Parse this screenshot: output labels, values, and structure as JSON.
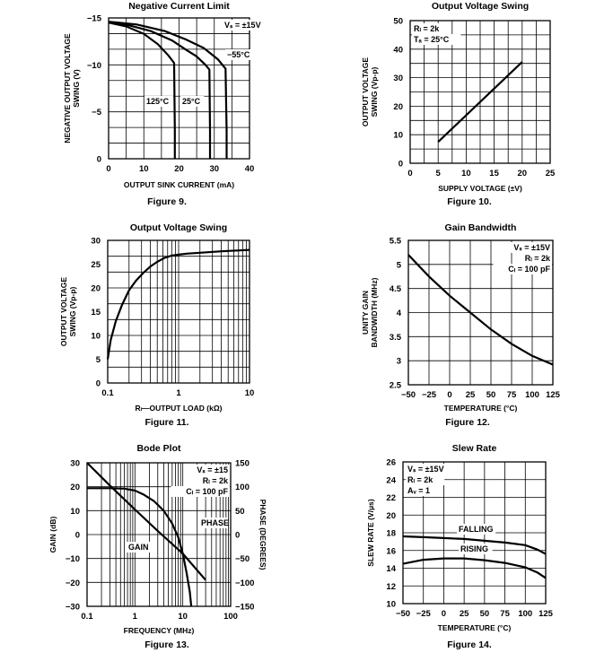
{
  "chart_data": [
    {
      "type": "line",
      "id": "fig9",
      "title": "Negative Current Limit",
      "caption": "Figure 9.",
      "xlabel": "OUTPUT SINK CURRENT (mA)",
      "ylabel_lines": [
        "NEGATIVE OUTPUT VOLTAGE",
        "SWING (V)"
      ],
      "xlim": [
        0,
        40
      ],
      "ylim": [
        0,
        -15
      ],
      "xticks": [
        "0",
        "10",
        "20",
        "30",
        "40"
      ],
      "yticks": [
        "0",
        "−5",
        "−10",
        "−15"
      ],
      "annotations": [
        "Vₛ = ±15V",
        "−55°C",
        "125°C",
        "25°C"
      ],
      "series": [
        {
          "name": "125°C",
          "x": [
            0,
            5,
            10,
            14,
            17,
            18.6,
            18.8,
            18.8
          ],
          "y": [
            -14.5,
            -14.1,
            -13.3,
            -12.2,
            -11.0,
            -10.2,
            -3,
            0
          ]
        },
        {
          "name": "25°C",
          "x": [
            0,
            6,
            12,
            18,
            22,
            25,
            27.5,
            28.6,
            28.8,
            28.8
          ],
          "y": [
            -14.6,
            -14.2,
            -13.6,
            -12.6,
            -11.6,
            -10.9,
            -10.0,
            -9.5,
            -3,
            0
          ]
        },
        {
          "name": "−55°C",
          "x": [
            0,
            8,
            16,
            22,
            27,
            31,
            33.2,
            33.5,
            33.5
          ],
          "y": [
            -14.6,
            -14.3,
            -13.6,
            -12.7,
            -11.8,
            -10.6,
            -9.6,
            -3,
            0
          ]
        }
      ]
    },
    {
      "type": "line",
      "id": "fig10",
      "title": "Output Voltage Swing",
      "caption": "Figure 10.",
      "xlabel": "SUPPLY VOLTAGE (±V)",
      "ylabel_lines": [
        "OUTPUT VOLTAGE",
        "SWING (Vp-p)"
      ],
      "xlim": [
        0,
        25
      ],
      "ylim": [
        0,
        50
      ],
      "xticks": [
        "0",
        "5",
        "10",
        "15",
        "20",
        "25"
      ],
      "yticks": [
        "0",
        "10",
        "20",
        "30",
        "40",
        "50"
      ],
      "annotations": [
        "Rₗ = 2k",
        "Tₐ = 25°C"
      ],
      "series": [
        {
          "name": "swing",
          "x": [
            5,
            20
          ],
          "y": [
            7.5,
            35.5
          ]
        }
      ]
    },
    {
      "type": "line",
      "id": "fig11",
      "title": "Output Voltage Swing",
      "caption": "Figure 11.",
      "xlabel": "Rₗ—OUTPUT LOAD (kΩ)",
      "ylabel_lines": [
        "OUTPUT VOLTAGE",
        "SWING (Vp-p)"
      ],
      "xscale": "log",
      "xlim": [
        0.1,
        10
      ],
      "ylim": [
        0,
        30
      ],
      "xticks": [
        "0.1",
        "1",
        "10"
      ],
      "yticks": [
        "0",
        "5",
        "10",
        "15",
        "20",
        "25",
        "30"
      ],
      "annotations": [],
      "series": [
        {
          "name": "swing",
          "x": [
            0.1,
            0.11,
            0.13,
            0.16,
            0.2,
            0.25,
            0.32,
            0.4,
            0.5,
            0.63,
            0.8,
            1.0,
            1.3,
            2,
            4,
            10
          ],
          "y": [
            5,
            9,
            13,
            16.5,
            19.5,
            21.5,
            23.2,
            24.5,
            25.5,
            26.3,
            26.8,
            27.0,
            27.2,
            27.4,
            27.7,
            28.0
          ]
        }
      ]
    },
    {
      "type": "line",
      "id": "fig12",
      "title": "Gain Bandwidth",
      "caption": "Figure 12.",
      "xlabel": "TEMPERATURE (°C)",
      "ylabel_lines": [
        "UNITY GAIN",
        "BANDWIDTH (MHz)"
      ],
      "xlim": [
        -50,
        125
      ],
      "ylim": [
        2.5,
        5.5
      ],
      "xticks": [
        "−50",
        "−25",
        "0",
        "25",
        "50",
        "75",
        "100",
        "125"
      ],
      "yticks": [
        "2.5",
        "3",
        "3.5",
        "4",
        "4.5",
        "5",
        "5.5"
      ],
      "annotations": [
        "Vₛ = ±15V",
        "Rₗ = 2k",
        "Cₗ = 100 pF"
      ],
      "series": [
        {
          "name": "GBW",
          "x": [
            -50,
            -25,
            0,
            25,
            50,
            75,
            100,
            125
          ],
          "y": [
            5.2,
            4.75,
            4.35,
            4.0,
            3.65,
            3.35,
            3.1,
            2.92
          ]
        }
      ]
    },
    {
      "type": "line",
      "id": "fig13",
      "title": "Bode Plot",
      "caption": "Figure 13.",
      "xlabel": "FREQUENCY (MHz)",
      "ylabel": "GAIN (dB)",
      "y2label": "PHASE (DEGREES)",
      "xscale": "log",
      "xlim": [
        0.1,
        100
      ],
      "ylim": [
        -30,
        30
      ],
      "y2lim": [
        -150,
        150
      ],
      "xticks": [
        "0.1",
        "1",
        "10",
        "100"
      ],
      "yticks": [
        "−30",
        "−20",
        "−10",
        "0",
        "10",
        "20",
        "30"
      ],
      "y2ticks": [
        "−150",
        "−100",
        "−50",
        "0",
        "50",
        "100",
        "150"
      ],
      "annotations": [
        "Vₛ = ±15",
        "Rₗ = 2k",
        "Cₗ = 100 pF",
        "PHASE",
        "GAIN"
      ],
      "series": [
        {
          "name": "GAIN",
          "x": [
            0.1,
            0.3,
            1,
            3,
            10,
            30
          ],
          "y": [
            30,
            20.5,
            10.5,
            1.5,
            -8,
            -19
          ]
        },
        {
          "name": "PHASE",
          "axis": "y2",
          "x": [
            0.1,
            0.3,
            0.6,
            1.0,
            1.5,
            2.5,
            4,
            6,
            8,
            10,
            12,
            14,
            15
          ],
          "y": [
            97,
            97,
            96,
            92,
            84,
            70,
            50,
            23,
            -5,
            -40,
            -80,
            -120,
            -150
          ]
        }
      ]
    },
    {
      "type": "line",
      "id": "fig14",
      "title": "Slew Rate",
      "caption": "Figure 14.",
      "xlabel": "TEMPERATURE (°C)",
      "ylabel": "SLEW RATE (V/μs)",
      "xlim": [
        -50,
        125
      ],
      "ylim": [
        10,
        26
      ],
      "xticks": [
        "−50",
        "−25",
        "0",
        "25",
        "50",
        "75",
        "100",
        "125"
      ],
      "yticks": [
        "10",
        "12",
        "14",
        "16",
        "18",
        "20",
        "22",
        "24",
        "26"
      ],
      "annotations": [
        "Vₛ = ±15V",
        "Rₗ = 2k",
        "Aᵥ = 1",
        "FALLING",
        "RISING"
      ],
      "series": [
        {
          "name": "FALLING",
          "x": [
            -50,
            -25,
            0,
            25,
            50,
            75,
            100,
            115,
            125
          ],
          "y": [
            17.6,
            17.5,
            17.4,
            17.3,
            17.1,
            16.9,
            16.6,
            16.1,
            15.6
          ]
        },
        {
          "name": "RISING",
          "x": [
            -50,
            -25,
            0,
            25,
            50,
            75,
            100,
            115,
            125
          ],
          "y": [
            14.5,
            14.95,
            15.1,
            15.1,
            14.9,
            14.6,
            14.1,
            13.5,
            12.9
          ]
        }
      ]
    }
  ]
}
